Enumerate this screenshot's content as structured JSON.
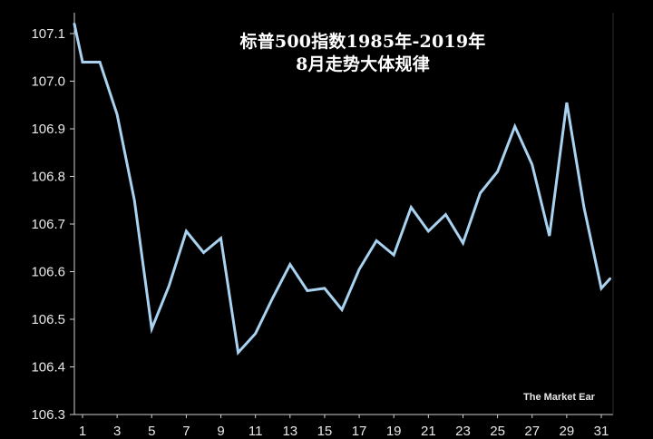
{
  "chart_data": {
    "type": "line",
    "title_line1": "标普500指数1985年-2019年",
    "title_line2": "8月走势大体规律",
    "watermark": "The Market Ear",
    "ylim": [
      106.3,
      107.15
    ],
    "xlim": [
      1,
      31
    ],
    "y_ticks": [
      106.3,
      106.4,
      106.5,
      106.6,
      106.7,
      106.8,
      106.9,
      107.0,
      107.1
    ],
    "y_tick_labels": [
      "106.3",
      "106.4",
      "106.5",
      "106.6",
      "106.7",
      "106.8",
      "106.9",
      "107.0",
      "107.1"
    ],
    "x_ticks": [
      1,
      3,
      5,
      7,
      9,
      11,
      13,
      15,
      17,
      19,
      21,
      23,
      25,
      27,
      29,
      31
    ],
    "x_tick_labels": [
      "1",
      "3",
      "5",
      "7",
      "9",
      "11",
      "13",
      "15",
      "17",
      "19",
      "21",
      "23",
      "25",
      "27",
      "29",
      "31"
    ],
    "grid": false,
    "line_color": "#a8d2f0",
    "x": [
      0.5,
      1,
      2,
      3,
      4,
      5,
      6,
      7,
      8,
      9,
      10,
      11,
      12,
      13,
      14,
      15,
      16,
      17,
      18,
      19,
      20,
      21,
      22,
      23,
      24,
      25,
      26,
      27,
      28,
      29,
      30,
      31,
      31.5
    ],
    "y": [
      107.12,
      107.04,
      107.04,
      106.93,
      106.75,
      106.48,
      106.57,
      106.685,
      106.64,
      106.67,
      106.43,
      106.47,
      106.545,
      106.615,
      106.56,
      106.565,
      106.52,
      106.605,
      106.665,
      106.635,
      106.735,
      106.685,
      106.72,
      106.66,
      106.765,
      106.81,
      106.905,
      106.825,
      106.675,
      106.955,
      106.735,
      106.565,
      106.585
    ]
  }
}
